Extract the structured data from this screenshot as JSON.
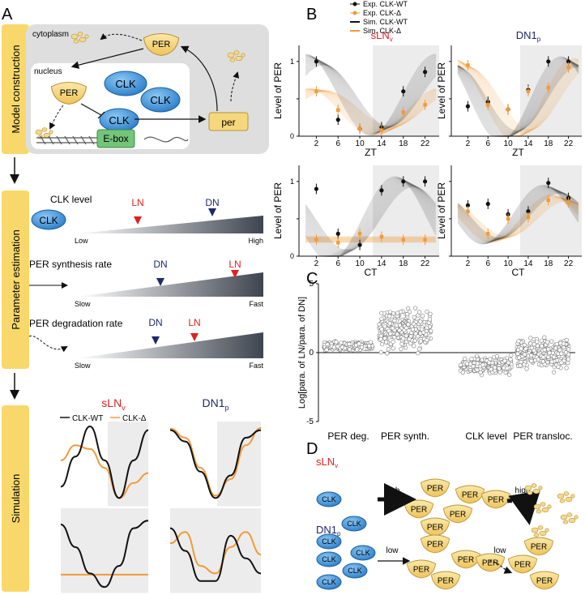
{
  "panels": {
    "A": "A",
    "B": "B",
    "C": "C",
    "D": "D"
  },
  "sections": {
    "model": "Model construction",
    "param": "Parameter estimation",
    "sim": "Simulation"
  },
  "model": {
    "cytoplasm": "cytoplasm",
    "nucleus": "nucleus",
    "per_protein": "PER",
    "clk": "CLK",
    "ebox": "E-box",
    "per_gene": "per"
  },
  "params": {
    "clk_level": {
      "title": "CLK level",
      "low": "Low",
      "high": "High",
      "marks": [
        "LN",
        "DN"
      ]
    },
    "per_synth": {
      "title": "PER synthesis rate",
      "low": "Slow",
      "high": "Fast",
      "marks": [
        "DN",
        "LN"
      ]
    },
    "per_deg": {
      "title": "PER degradation rate",
      "low": "Slow",
      "high": "Fast",
      "marks": [
        "DN",
        "LN"
      ]
    }
  },
  "simulation": {
    "titles": [
      "sLN",
      "DN1"
    ],
    "subs": [
      "v",
      "p"
    ],
    "legend": [
      "CLK-WT",
      "CLK-Δ"
    ]
  },
  "panel_b": {
    "legend": [
      "Exp. CLK-WT",
      "Exp. CLK-Δ",
      "Sim. CLK-WT",
      "Sim. CLK-Δ"
    ],
    "titles": [
      "sLN",
      "DN1"
    ],
    "subs": [
      "v",
      "p"
    ],
    "ylabel": "Level of PER",
    "xlabels": [
      "ZT",
      "CT"
    ],
    "xticks": [
      "2",
      "6",
      "10",
      "14",
      "18",
      "22"
    ],
    "yticks": [
      "0",
      "0.5",
      "1"
    ]
  },
  "chart_data": [
    {
      "type": "scatter",
      "title": "sLNv ZT",
      "xlabel": "ZT",
      "ylabel": "Level of PER",
      "ylim": [
        0,
        1.15
      ],
      "x": [
        2,
        6,
        10,
        14,
        18,
        22
      ],
      "series": [
        {
          "name": "Exp. CLK-WT",
          "values": [
            1.0,
            0.22,
            0.1,
            0.12,
            0.6,
            0.86
          ]
        },
        {
          "name": "Exp. CLK-Δ",
          "values": [
            0.6,
            0.35,
            0.1,
            0.08,
            0.32,
            0.42
          ]
        }
      ]
    },
    {
      "type": "scatter",
      "title": "DN1p ZT",
      "xlabel": "ZT",
      "ylabel": "Level of PER",
      "ylim": [
        0,
        1.15
      ],
      "x": [
        2,
        6,
        10,
        14,
        18,
        22
      ],
      "series": [
        {
          "name": "Exp. CLK-WT",
          "values": [
            0.4,
            0.46,
            0.36,
            0.62,
            1.0,
            1.0
          ]
        },
        {
          "name": "Exp. CLK-Δ",
          "values": [
            0.95,
            0.42,
            0.36,
            0.6,
            0.65,
            0.92
          ]
        }
      ]
    },
    {
      "type": "scatter",
      "title": "sLNv CT",
      "xlabel": "CT",
      "ylabel": "Level of PER",
      "ylim": [
        0,
        1.15
      ],
      "x": [
        2,
        6,
        10,
        14,
        18,
        22
      ],
      "series": [
        {
          "name": "Exp. CLK-WT",
          "values": [
            0.9,
            0.3,
            0.15,
            0.88,
            1.0,
            1.0
          ]
        },
        {
          "name": "Exp. CLK-Δ",
          "values": [
            0.22,
            0.18,
            0.3,
            0.26,
            0.22,
            0.22
          ]
        }
      ]
    },
    {
      "type": "scatter",
      "title": "DN1p CT",
      "xlabel": "CT",
      "ylabel": "Level of PER",
      "ylim": [
        0,
        1.15
      ],
      "x": [
        2,
        6,
        10,
        14,
        18,
        22
      ],
      "series": [
        {
          "name": "Exp. CLK-WT",
          "values": [
            0.68,
            0.7,
            0.56,
            0.6,
            0.98,
            0.78
          ]
        },
        {
          "name": "Exp. CLK-Δ",
          "values": [
            0.6,
            0.3,
            0.5,
            0.52,
            0.75,
            0.72
          ]
        }
      ]
    },
    {
      "type": "scatter",
      "title": "Panel C",
      "ylabel": "Log[para. of LN/para. of DN]",
      "ylim": [
        -5,
        5
      ],
      "categories": [
        "PER deg.",
        "PER synth.",
        "CLK level",
        "PER transloc."
      ],
      "centers": [
        0.5,
        1.7,
        -0.9,
        0.0
      ],
      "spreads": [
        0.4,
        2.0,
        0.8,
        1.5
      ],
      "yticks": [
        "5",
        "0",
        "-5"
      ]
    }
  ],
  "panel_d": {
    "rows": [
      {
        "label": "sLN",
        "sub": "v",
        "rate1": "high",
        "rate2": "high"
      },
      {
        "label": "DN1",
        "sub": "p",
        "rate1": "low",
        "rate2": "low"
      }
    ],
    "clk": "CLK",
    "per": "PER"
  },
  "colors": {
    "orange": "#f29a38",
    "black": "#111111",
    "red": "#e02020",
    "navy": "#1f2a6b",
    "yellow": "#f5d87c",
    "blue": "#3a8ed8",
    "green": "#74c47a"
  }
}
